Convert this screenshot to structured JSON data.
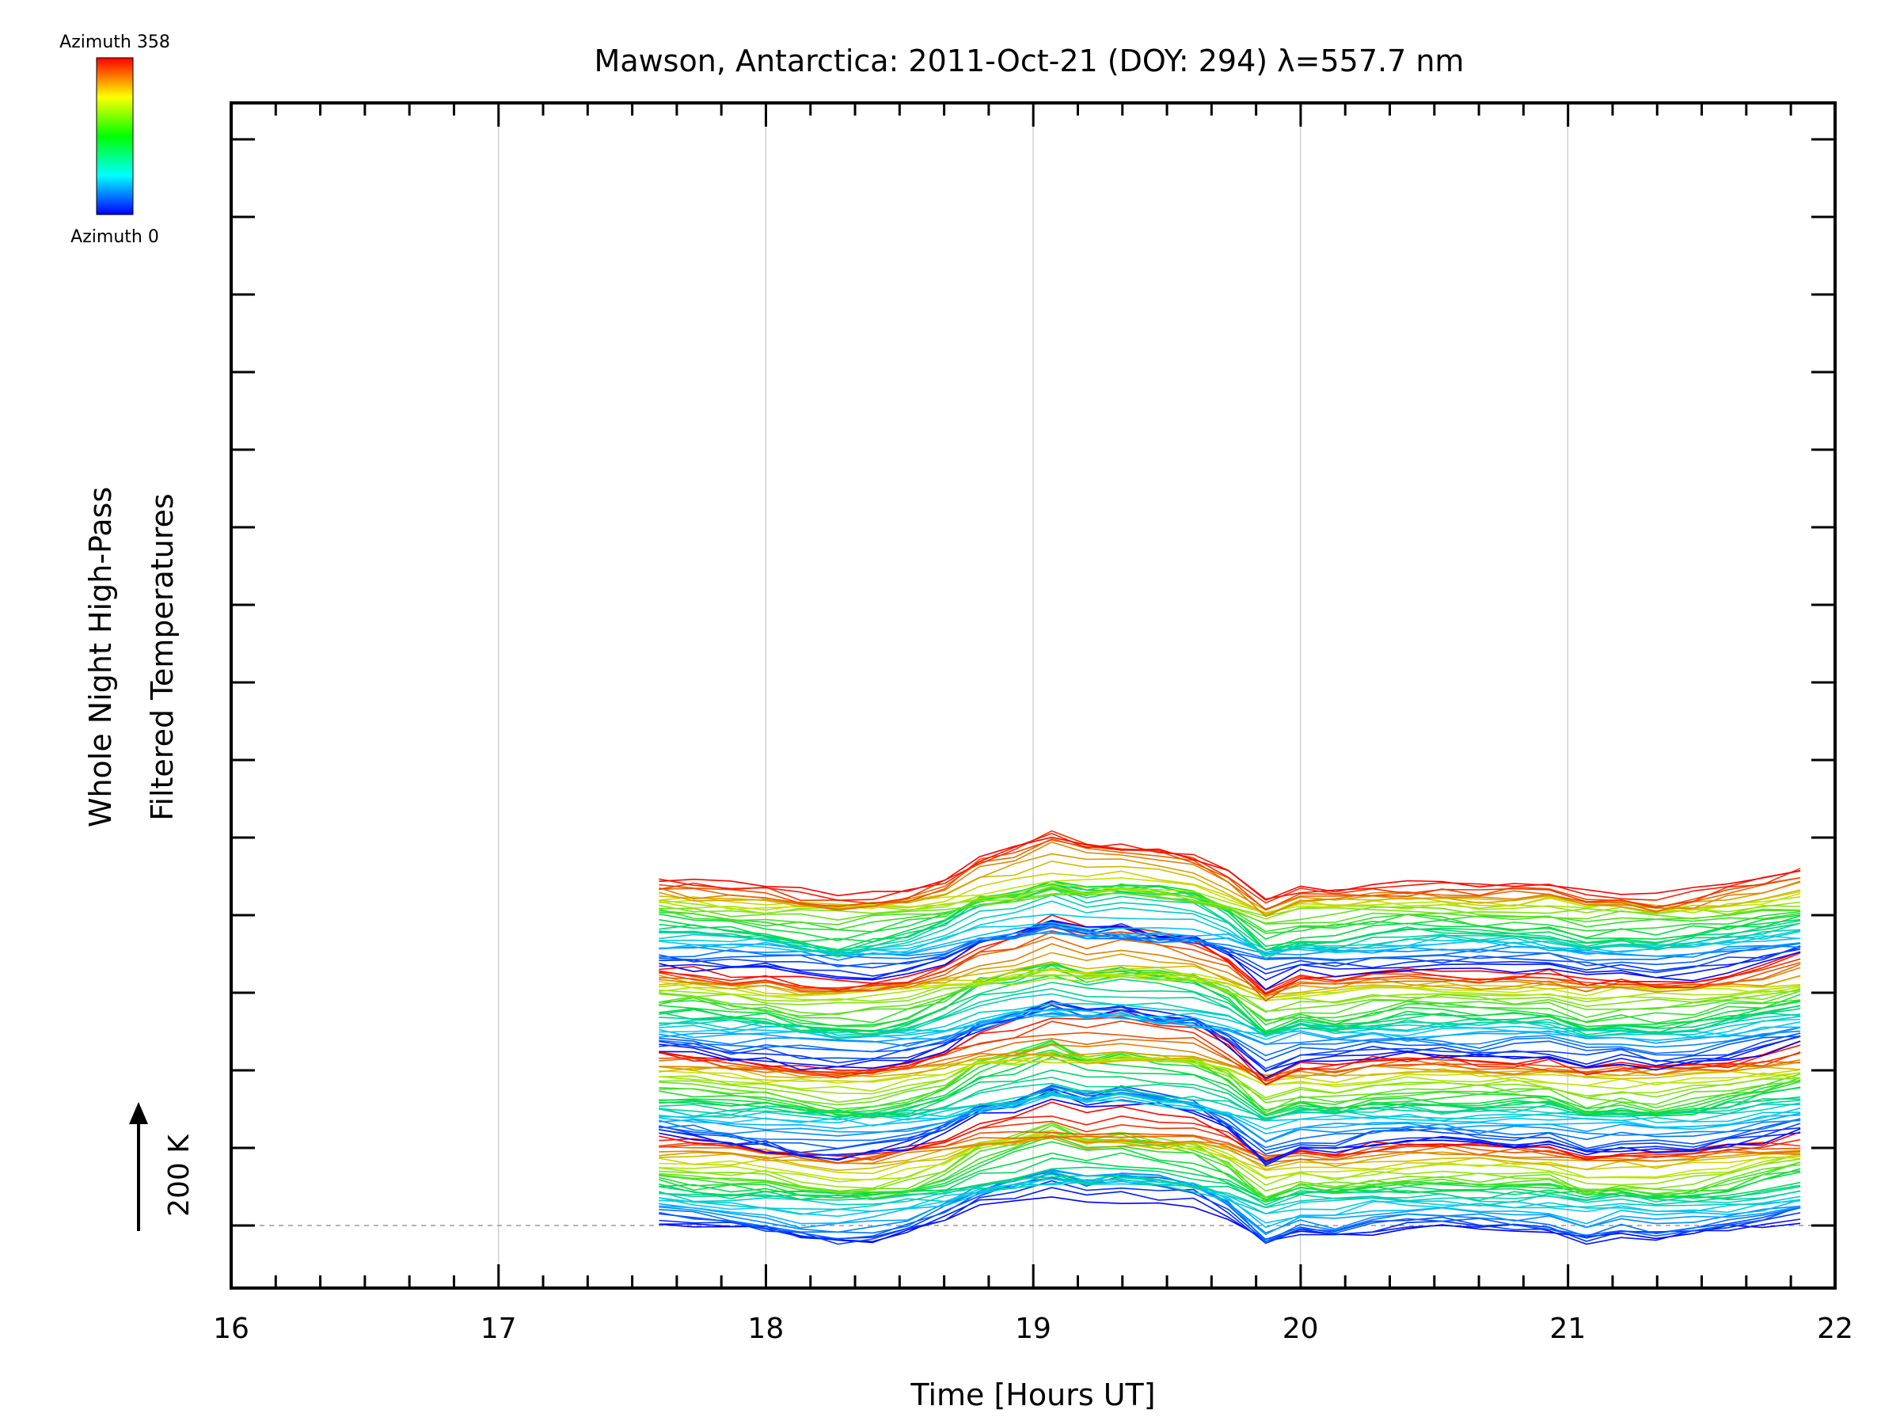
{
  "chart_data": {
    "type": "line",
    "title": "Mawson, Antarctica: 2011-Oct-21 (DOY: 294) λ=557.7 nm",
    "xlabel": "Time [Hours UT]",
    "ylabel_line1": "Whole Night High-Pass",
    "ylabel_line2": "Filtered Temperatures",
    "scale_label": "200 K",
    "xlim": [
      16,
      22
    ],
    "xticks": [
      "16",
      "17",
      "18",
      "19",
      "20",
      "21",
      "22"
    ],
    "vertical_gridlines_at": [
      17,
      18,
      19,
      20,
      21
    ],
    "baseline_dashed": true,
    "n_traces": 144,
    "trace_offset_per_step": 33,
    "trace_units": "K",
    "colorbar": {
      "top_label": "Azimuth 358",
      "bottom_label": "Azimuth 0",
      "colors": [
        "#ff0000",
        "#ffff00",
        "#00ff00",
        "#00ffff",
        "#0000ff"
      ]
    },
    "times": [
      17.6,
      17.73,
      17.87,
      18.0,
      18.13,
      18.27,
      18.4,
      18.53,
      18.67,
      18.8,
      18.93,
      19.07,
      19.2,
      19.33,
      19.47,
      19.6,
      19.73,
      19.87,
      20.0,
      20.13,
      20.27,
      20.4,
      20.53,
      20.67,
      20.8,
      20.93,
      21.07,
      21.2,
      21.33,
      21.47,
      21.6,
      21.73,
      21.87
    ],
    "mean_profile_K": [
      0,
      -5,
      -15,
      -20,
      -35,
      -45,
      -40,
      -25,
      5,
      50,
      70,
      100,
      75,
      85,
      70,
      60,
      20,
      -55,
      -25,
      -30,
      -15,
      -10,
      -10,
      -15,
      -15,
      -15,
      -40,
      -30,
      -40,
      -30,
      -15,
      0,
      20
    ]
  }
}
